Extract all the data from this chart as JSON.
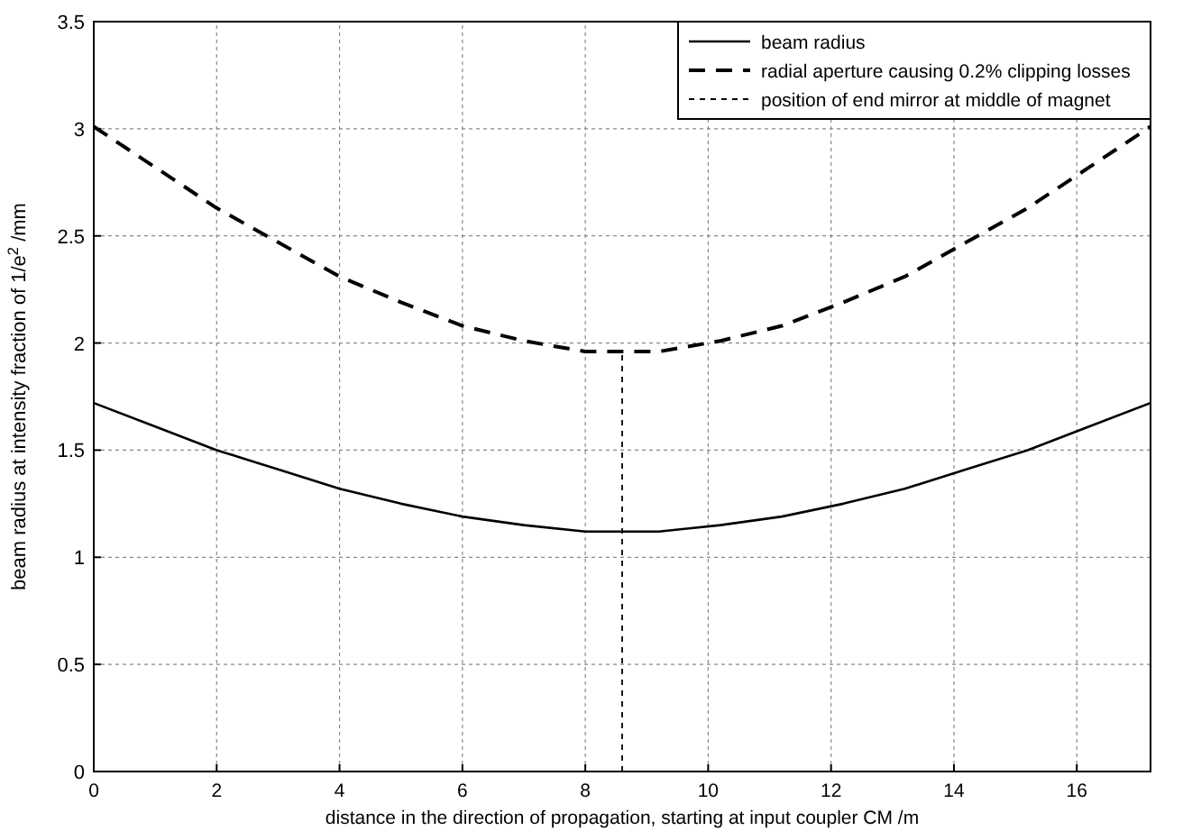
{
  "chart_data": {
    "type": "line",
    "xlabel": "distance in the direction of propagation, starting at input coupler CM  /m",
    "ylabel": "beam radius at intensity fraction of 1/e$^{2}$ /mm",
    "xlim": [
      0,
      17.2
    ],
    "xticks": [
      0,
      2,
      4,
      6,
      8,
      10,
      12,
      14,
      16
    ],
    "ylim": [
      0,
      3.5
    ],
    "yticks": [
      0,
      0.5,
      1,
      1.5,
      2,
      2.5,
      3,
      3.5
    ],
    "grid": true,
    "legend": "top right",
    "series": [
      {
        "name": "beam radius",
        "color": "#000000",
        "line_style": "solid",
        "x": [
          0,
          1,
          2,
          3,
          4,
          5,
          6,
          7,
          8,
          8.6,
          9.2,
          10.2,
          11.2,
          12.2,
          13.2,
          14.2,
          15.2,
          16.2,
          17.2
        ],
        "values": [
          1.72,
          1.61,
          1.5,
          1.41,
          1.32,
          1.25,
          1.19,
          1.15,
          1.12,
          1.12,
          1.12,
          1.15,
          1.19,
          1.25,
          1.32,
          1.41,
          1.5,
          1.61,
          1.72
        ]
      },
      {
        "name": "radial aperture causing 0.2% clipping losses",
        "color": "#000000",
        "line_style": "dashed",
        "x": [
          0,
          1,
          2,
          3,
          4,
          5,
          6,
          7,
          8,
          8.6,
          9.2,
          10.2,
          11.2,
          12.2,
          13.2,
          14.2,
          15.2,
          16.2,
          17.2
        ],
        "values": [
          3.01,
          2.82,
          2.63,
          2.47,
          2.31,
          2.19,
          2.08,
          2.01,
          1.96,
          1.96,
          1.96,
          2.01,
          2.08,
          2.19,
          2.31,
          2.47,
          2.63,
          2.82,
          3.01
        ]
      },
      {
        "name": "position of end mirror at middle of magnet",
        "color": "#000000",
        "line_style": "dotted",
        "x": [
          8.6,
          8.6
        ],
        "values": [
          0,
          1.96
        ]
      }
    ]
  }
}
